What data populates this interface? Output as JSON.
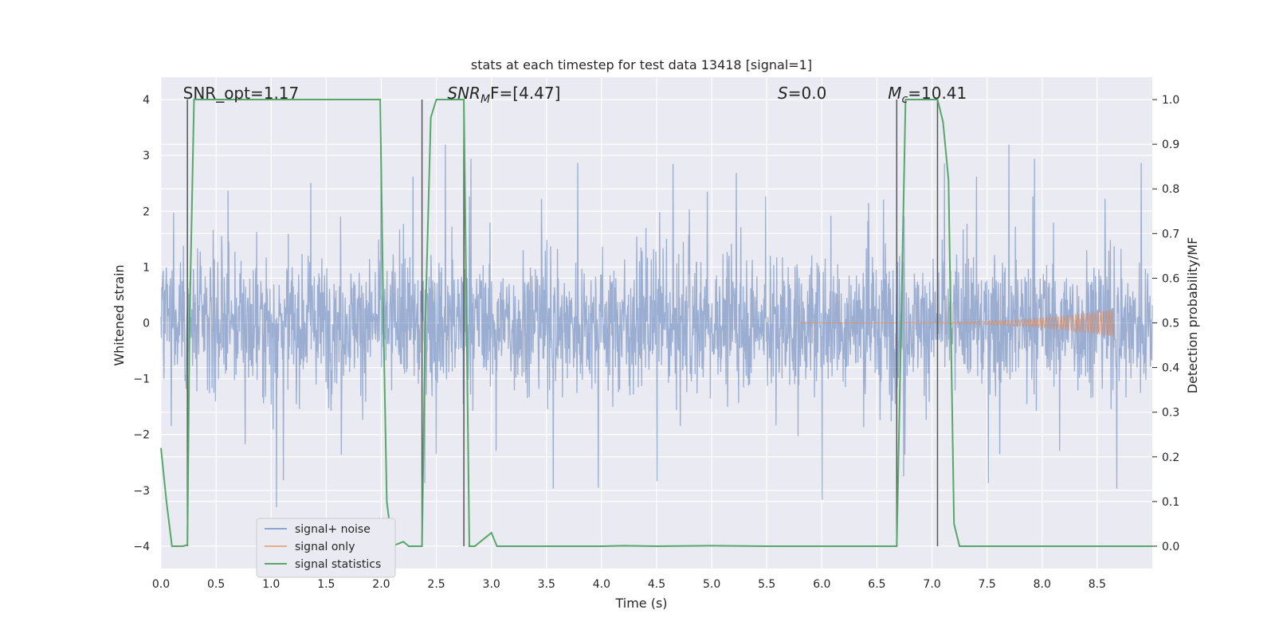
{
  "chart_data": {
    "type": "line",
    "title": "stats at each timestep for test data 13418 [signal=1]",
    "xlabel": "Time (s)",
    "ylabel_left": "Whitened strain",
    "ylabel_right": "Detection probability/MF",
    "xlim": [
      0,
      9.0
    ],
    "ylim_left": [
      -4.4,
      4.4
    ],
    "ylim_right": [
      -0.05,
      1.05
    ],
    "x_ticks": [
      "0.0",
      "0.5",
      "1.0",
      "1.5",
      "2.0",
      "2.5",
      "3.0",
      "3.5",
      "4.0",
      "4.5",
      "5.0",
      "5.5",
      "6.0",
      "6.5",
      "7.0",
      "7.5",
      "8.0",
      "8.5"
    ],
    "y_left_ticks": [
      "4",
      "3",
      "2",
      "1",
      "0",
      "−1",
      "−2",
      "−3",
      "−4"
    ],
    "y_right_ticks": [
      "1.0",
      "0.9",
      "0.8",
      "0.7",
      "0.6",
      "0.5",
      "0.4",
      "0.3",
      "0.2",
      "0.1",
      "0.0"
    ],
    "grid": true,
    "legend_position": "lower-left",
    "colors": {
      "signal_noise": "#4c72b0",
      "signal_only": "#dd8452",
      "signal_statistics": "#55a868",
      "markers": "#555555",
      "background": "#eaeaf2",
      "grid": "#ffffff"
    },
    "annotations": [
      {
        "text": "SNR_opt=1.17",
        "x": 0.2
      },
      {
        "base": "SNR",
        "sub": "M",
        "rest": "F=[4.47]",
        "x": 2.6
      },
      {
        "base": "S",
        "sub": "",
        "rest": "=0.0",
        "x": 5.6
      },
      {
        "base": "M",
        "sub": "c",
        "rest": "=10.41",
        "x": 6.6
      }
    ],
    "vertical_markers": [
      0.24,
      2.37,
      2.75,
      6.68,
      7.05
    ],
    "series": [
      {
        "name": "signal+ noise",
        "axis": "left",
        "style": "noise",
        "envelope_max": 3.6,
        "envelope_min": -3.9,
        "typical_range": [
          -2.0,
          2.0
        ],
        "x_range": [
          0,
          9.0
        ]
      },
      {
        "name": "signal only",
        "axis": "left",
        "style": "chirp",
        "x_start": 5.8,
        "x_end": 8.65,
        "peak_amplitude": 0.25
      },
      {
        "name": "signal statistics",
        "axis": "right",
        "style": "line",
        "x": [
          0.0,
          0.05,
          0.1,
          0.2,
          0.24,
          0.26,
          0.3,
          0.5,
          1.0,
          1.5,
          1.99,
          2.02,
          2.05,
          2.1,
          2.15,
          2.2,
          2.25,
          2.3,
          2.37,
          2.4,
          2.45,
          2.5,
          2.6,
          2.75,
          2.8,
          2.85,
          2.9,
          2.95,
          3.0,
          3.05,
          3.5,
          4.0,
          4.2,
          4.5,
          5.0,
          5.5,
          6.0,
          6.5,
          6.68,
          6.72,
          6.76,
          6.8,
          7.0,
          7.05,
          7.1,
          7.15,
          7.2,
          7.25,
          7.5,
          8.0,
          8.5,
          9.0
        ],
        "y": [
          0.22,
          0.1,
          0.0,
          0.0,
          0.003,
          0.5,
          1.0,
          1.0,
          1.0,
          1.0,
          1.0,
          0.5,
          0.1,
          0.0,
          0.005,
          0.01,
          0.0,
          0.0,
          0.0,
          0.5,
          0.96,
          1.0,
          1.0,
          1.0,
          0.0,
          0.0,
          0.01,
          0.02,
          0.03,
          0.0,
          0.0,
          0.0,
          0.001,
          0.0,
          0.001,
          0.0,
          0.0,
          0.0,
          0.0,
          0.5,
          1.0,
          1.0,
          1.0,
          1.0,
          0.95,
          0.82,
          0.05,
          0.0,
          0.0,
          0.0,
          0.0,
          0.0
        ]
      }
    ]
  }
}
